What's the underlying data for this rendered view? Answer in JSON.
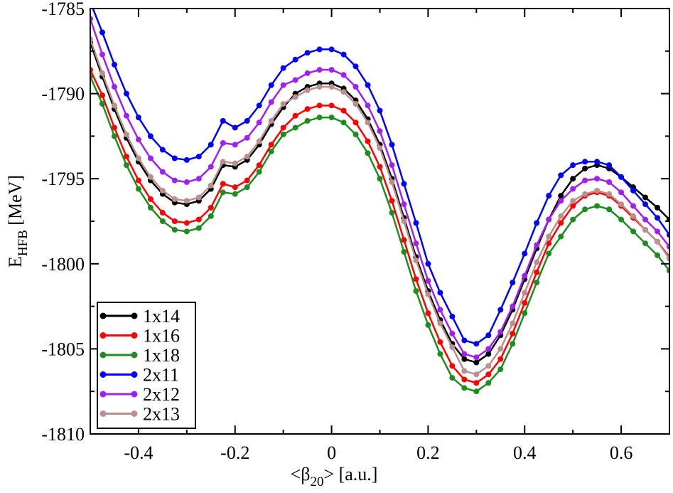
{
  "chart_data": {
    "type": "line",
    "x_label": {
      "main": "<β",
      "sub": "20",
      "rest": "> [a.u.]"
    },
    "y_label": {
      "main": "E",
      "sub": "HFB",
      "rest": " [MeV]"
    },
    "x": [
      -0.5,
      -0.475,
      -0.45,
      -0.425,
      -0.4,
      -0.375,
      -0.35,
      -0.325,
      -0.3,
      -0.275,
      -0.25,
      -0.225,
      -0.2,
      -0.175,
      -0.15,
      -0.125,
      -0.1,
      -0.075,
      -0.05,
      -0.025,
      0,
      0.025,
      0.05,
      0.075,
      0.1,
      0.125,
      0.15,
      0.175,
      0.2,
      0.225,
      0.25,
      0.275,
      0.3,
      0.325,
      0.35,
      0.375,
      0.4,
      0.425,
      0.45,
      0.475,
      0.5,
      0.525,
      0.55,
      0.575,
      0.6,
      0.625,
      0.65,
      0.675,
      0.7
    ],
    "series": [
      {
        "name": "1x14",
        "color": "#000000",
        "values": [
          -1787.0,
          -1789.0,
          -1790.9,
          -1792.6,
          -1794.0,
          -1795.1,
          -1795.9,
          -1796.4,
          -1796.5,
          -1796.3,
          -1795.6,
          -1794.2,
          -1794.3,
          -1793.9,
          -1793.0,
          -1791.8,
          -1790.8,
          -1790.0,
          -1789.6,
          -1789.4,
          -1789.4,
          -1789.7,
          -1790.4,
          -1791.5,
          -1793.0,
          -1795.0,
          -1797.3,
          -1799.6,
          -1801.6,
          -1803.3,
          -1804.7,
          -1805.6,
          -1805.8,
          -1805.3,
          -1804.2,
          -1802.7,
          -1800.9,
          -1799.1,
          -1797.4,
          -1796.0,
          -1795.0,
          -1794.4,
          -1794.2,
          -1794.4,
          -1794.9,
          -1795.5,
          -1796.1,
          -1796.7,
          -1797.4
        ]
      },
      {
        "name": "1x16",
        "color": "#ff0000",
        "values": [
          -1788.6,
          -1790.1,
          -1792.0,
          -1793.7,
          -1795.1,
          -1796.2,
          -1797.0,
          -1797.5,
          -1797.6,
          -1797.4,
          -1796.7,
          -1795.3,
          -1795.5,
          -1795.1,
          -1794.2,
          -1793.0,
          -1792.0,
          -1791.3,
          -1790.9,
          -1790.7,
          -1790.7,
          -1791.0,
          -1791.7,
          -1792.8,
          -1794.3,
          -1796.3,
          -1798.6,
          -1800.9,
          -1802.9,
          -1804.6,
          -1806.0,
          -1806.8,
          -1807.0,
          -1806.5,
          -1805.6,
          -1804.1,
          -1802.3,
          -1800.5,
          -1798.8,
          -1797.6,
          -1796.6,
          -1796.0,
          -1795.8,
          -1796.0,
          -1796.6,
          -1797.3,
          -1798.0,
          -1798.7,
          -1799.6
        ]
      },
      {
        "name": "1x18",
        "color": "#1e8c1e",
        "values": [
          -1789.0,
          -1790.6,
          -1792.5,
          -1794.2,
          -1795.6,
          -1796.7,
          -1797.5,
          -1798.0,
          -1798.1,
          -1797.9,
          -1797.2,
          -1795.8,
          -1795.9,
          -1795.5,
          -1794.6,
          -1793.4,
          -1792.4,
          -1792.0,
          -1791.6,
          -1791.4,
          -1791.4,
          -1791.7,
          -1792.4,
          -1793.5,
          -1795.0,
          -1797.0,
          -1799.3,
          -1801.6,
          -1803.6,
          -1805.3,
          -1806.7,
          -1807.3,
          -1807.5,
          -1807.0,
          -1806.2,
          -1804.7,
          -1802.9,
          -1801.1,
          -1799.4,
          -1798.4,
          -1797.4,
          -1796.8,
          -1796.6,
          -1796.8,
          -1797.4,
          -1798.1,
          -1798.8,
          -1799.5,
          -1800.4
        ]
      },
      {
        "name": "2x11",
        "color": "#0000ff",
        "values": [
          -1784.6,
          -1786.4,
          -1788.3,
          -1790.0,
          -1791.4,
          -1792.5,
          -1793.3,
          -1793.8,
          -1793.9,
          -1793.7,
          -1793.0,
          -1791.6,
          -1792.0,
          -1791.6,
          -1790.7,
          -1789.5,
          -1788.5,
          -1788.0,
          -1787.6,
          -1787.4,
          -1787.4,
          -1787.7,
          -1788.4,
          -1789.5,
          -1791.0,
          -1793.0,
          -1795.3,
          -1797.6,
          -1800.0,
          -1801.7,
          -1803.1,
          -1804.5,
          -1804.7,
          -1804.2,
          -1802.7,
          -1801.1,
          -1799.4,
          -1797.6,
          -1796.0,
          -1794.8,
          -1794.2,
          -1794.0,
          -1794.0,
          -1794.2,
          -1794.9,
          -1795.7,
          -1796.5,
          -1797.3,
          -1798.3
        ]
      },
      {
        "name": "2x12",
        "color": "#a020f0",
        "values": [
          -1785.6,
          -1787.7,
          -1789.6,
          -1791.3,
          -1792.7,
          -1793.8,
          -1794.6,
          -1795.1,
          -1795.2,
          -1795.0,
          -1794.3,
          -1792.9,
          -1793.0,
          -1792.6,
          -1791.7,
          -1790.5,
          -1789.5,
          -1789.2,
          -1788.8,
          -1788.6,
          -1788.6,
          -1788.9,
          -1789.6,
          -1790.7,
          -1792.2,
          -1794.2,
          -1796.5,
          -1798.8,
          -1801.0,
          -1802.7,
          -1804.1,
          -1805.3,
          -1805.5,
          -1805.0,
          -1804.0,
          -1802.5,
          -1800.7,
          -1798.9,
          -1797.4,
          -1796.3,
          -1795.6,
          -1795.1,
          -1795.0,
          -1795.2,
          -1795.8,
          -1796.6,
          -1797.4,
          -1798.1,
          -1799.0
        ]
      },
      {
        "name": "2x13",
        "color": "#bc8f8f",
        "values": [
          -1786.8,
          -1788.8,
          -1790.7,
          -1792.4,
          -1793.8,
          -1794.9,
          -1795.7,
          -1796.2,
          -1796.3,
          -1796.1,
          -1795.4,
          -1794.0,
          -1794.1,
          -1793.7,
          -1792.8,
          -1791.6,
          -1790.6,
          -1790.2,
          -1789.8,
          -1789.6,
          -1789.6,
          -1789.9,
          -1790.6,
          -1791.7,
          -1793.2,
          -1795.2,
          -1797.5,
          -1799.8,
          -1801.8,
          -1803.5,
          -1804.9,
          -1806.3,
          -1806.5,
          -1806.0,
          -1805.0,
          -1803.5,
          -1801.7,
          -1799.9,
          -1798.4,
          -1797.2,
          -1796.3,
          -1795.9,
          -1795.7,
          -1795.9,
          -1796.5,
          -1797.2,
          -1798.0,
          -1798.7,
          -1799.7
        ]
      }
    ],
    "xlim": [
      -0.5,
      0.7
    ],
    "ylim": [
      -1810,
      -1785
    ],
    "xticks": [
      -0.4,
      -0.2,
      0,
      0.2,
      0.4,
      0.6
    ],
    "xticks_minor": [
      -0.5,
      -0.3,
      -0.1,
      0.1,
      0.3,
      0.5,
      0.7
    ],
    "yticks": [
      -1810,
      -1805,
      -1800,
      -1795,
      -1790,
      -1785
    ],
    "yticks_minor": [
      -1807.5,
      -1802.5,
      -1797.5,
      -1792.5,
      -1787.5
    ],
    "legend": "lower left",
    "markers": true
  }
}
